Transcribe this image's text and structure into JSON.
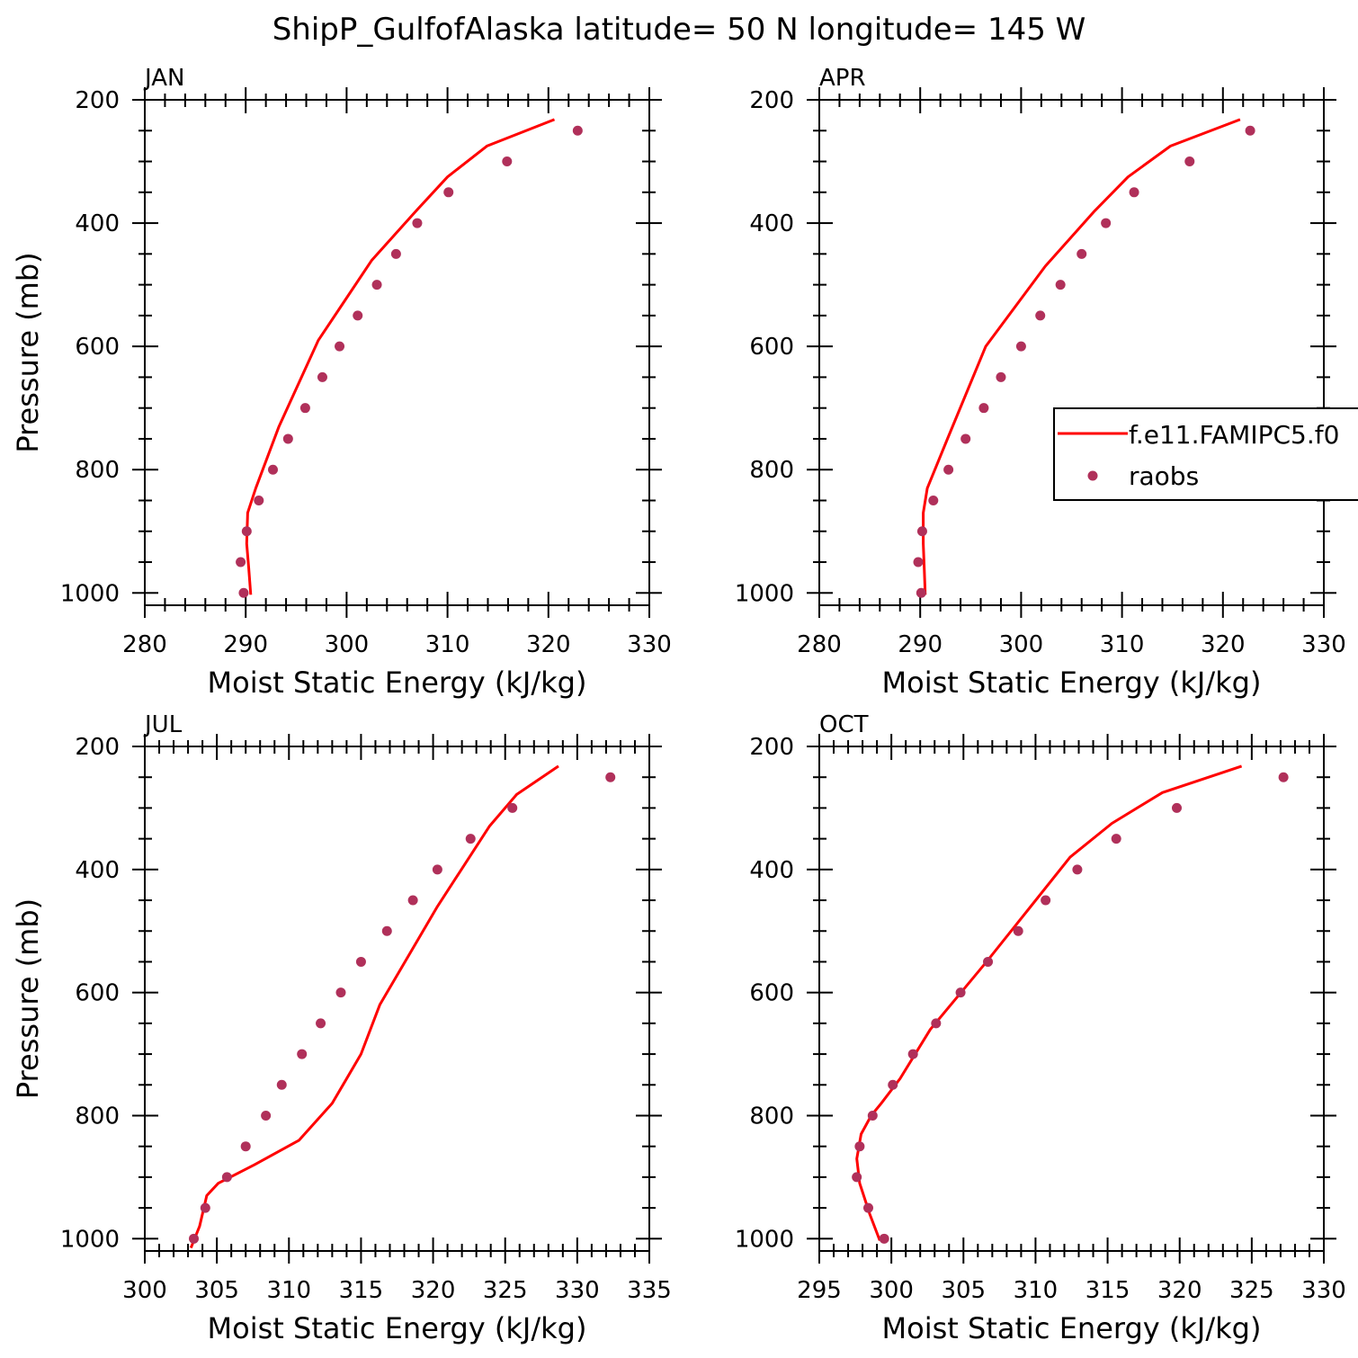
{
  "figure": {
    "title": "ShipP_GulfofAlaska  latitude= 50 N longitude= 145 W"
  },
  "legend": {
    "model_label": "f.e11.FAMIPC5.f0",
    "obs_label": "raobs"
  },
  "colors": {
    "model": "#ff0000",
    "obs": "#b0305a",
    "axis": "#000000"
  },
  "chart_data": [
    {
      "type": "line",
      "panel": "JAN",
      "title": "JAN",
      "xlabel": "Moist Static Energy (kJ/kg)",
      "ylabel": "Pressure (mb)",
      "xlim": [
        280,
        330
      ],
      "ylim": [
        1020,
        200
      ],
      "xticks": [
        280,
        290,
        300,
        310,
        320,
        330
      ],
      "yticks": [
        200,
        400,
        600,
        800,
        1000
      ],
      "y_reversed": true,
      "grid": false,
      "series": [
        {
          "name": "f.e11.FAMIPC5.f0",
          "kind": "line",
          "x": [
            320.6,
            313.9,
            310.0,
            306.9,
            302.5,
            297.2,
            293.3,
            291.0,
            290.2,
            290.1,
            290.3,
            290.5
          ],
          "y": [
            232,
            275,
            325,
            380,
            460,
            590,
            730,
            830,
            870,
            920,
            960,
            1003
          ]
        },
        {
          "name": "raobs",
          "kind": "scatter",
          "x": [
            322.9,
            315.9,
            310.1,
            307.0,
            304.9,
            303.0,
            301.1,
            299.3,
            297.6,
            295.9,
            294.2,
            292.7,
            291.3,
            290.1,
            289.5,
            289.8
          ],
          "y": [
            250,
            300,
            350,
            400,
            450,
            500,
            550,
            600,
            650,
            700,
            750,
            800,
            850,
            900,
            950,
            1000
          ]
        }
      ]
    },
    {
      "type": "line",
      "panel": "APR",
      "title": "APR",
      "xlabel": "Moist Static Energy (kJ/kg)",
      "ylabel": "",
      "xlim": [
        280,
        330
      ],
      "ylim": [
        1020,
        200
      ],
      "xticks": [
        280,
        290,
        300,
        310,
        320,
        330
      ],
      "yticks": [
        200,
        400,
        600,
        800,
        1000
      ],
      "y_reversed": true,
      "grid": false,
      "legend": "right",
      "series": [
        {
          "name": "f.e11.FAMIPC5.f0",
          "kind": "line",
          "x": [
            321.7,
            314.8,
            310.6,
            307.3,
            302.4,
            296.5,
            292.7,
            290.7,
            290.3,
            290.3,
            290.4,
            290.5
          ],
          "y": [
            232,
            275,
            325,
            380,
            470,
            600,
            750,
            830,
            870,
            920,
            960,
            1003
          ]
        },
        {
          "name": "raobs",
          "kind": "scatter",
          "x": [
            322.7,
            316.7,
            311.2,
            308.4,
            306.0,
            303.9,
            301.9,
            300.0,
            298.0,
            296.3,
            294.5,
            292.8,
            291.3,
            290.2,
            289.8,
            290.1
          ],
          "y": [
            250,
            300,
            350,
            400,
            450,
            500,
            550,
            600,
            650,
            700,
            750,
            800,
            850,
            900,
            950,
            1000
          ]
        }
      ]
    },
    {
      "type": "line",
      "panel": "JUL",
      "title": "JUL",
      "xlabel": "Moist Static Energy (kJ/kg)",
      "ylabel": "Pressure (mb)",
      "xlim": [
        300,
        335
      ],
      "ylim": [
        1020,
        200
      ],
      "xticks": [
        300,
        305,
        310,
        315,
        320,
        325,
        330,
        335
      ],
      "yticks": [
        200,
        400,
        600,
        800,
        1000
      ],
      "y_reversed": true,
      "grid": false,
      "series": [
        {
          "name": "f.e11.FAMIPC5.f0",
          "kind": "line",
          "x": [
            328.7,
            325.8,
            323.9,
            320.3,
            316.3,
            315.0,
            313.0,
            310.7,
            307.6,
            305.1,
            304.3,
            303.8,
            303.2
          ],
          "y": [
            232,
            278,
            330,
            460,
            620,
            700,
            780,
            840,
            880,
            910,
            930,
            980,
            1015
          ]
        },
        {
          "name": "raobs",
          "kind": "scatter",
          "x": [
            332.3,
            325.5,
            322.6,
            320.3,
            318.6,
            316.8,
            315.0,
            313.6,
            312.2,
            310.9,
            309.5,
            308.4,
            307.0,
            305.7,
            304.2,
            303.4
          ],
          "y": [
            250,
            300,
            350,
            400,
            450,
            500,
            550,
            600,
            650,
            700,
            750,
            800,
            850,
            900,
            950,
            1000
          ]
        }
      ]
    },
    {
      "type": "line",
      "panel": "OCT",
      "title": "OCT",
      "xlabel": "Moist Static Energy (kJ/kg)",
      "ylabel": "",
      "xlim": [
        295,
        330
      ],
      "ylim": [
        1020,
        200
      ],
      "xticks": [
        295,
        300,
        305,
        310,
        315,
        320,
        325,
        330
      ],
      "yticks": [
        200,
        400,
        600,
        800,
        1000
      ],
      "y_reversed": true,
      "grid": false,
      "series": [
        {
          "name": "f.e11.FAMIPC5.f0",
          "kind": "line",
          "x": [
            324.3,
            318.8,
            315.3,
            312.4,
            306.6,
            302.7,
            300.6,
            299.3,
            298.6,
            297.9,
            297.6,
            297.8,
            298.5,
            299.2
          ],
          "y": [
            232,
            275,
            325,
            380,
            550,
            660,
            740,
            780,
            800,
            830,
            870,
            910,
            960,
            1003
          ]
        },
        {
          "name": "raobs",
          "kind": "scatter",
          "x": [
            327.2,
            319.8,
            315.6,
            312.9,
            310.7,
            308.8,
            306.7,
            304.8,
            303.1,
            301.5,
            300.1,
            298.7,
            297.8,
            297.6,
            298.4,
            299.5
          ],
          "y": [
            250,
            300,
            350,
            400,
            450,
            500,
            550,
            600,
            650,
            700,
            750,
            800,
            850,
            900,
            950,
            1000
          ]
        }
      ]
    }
  ]
}
